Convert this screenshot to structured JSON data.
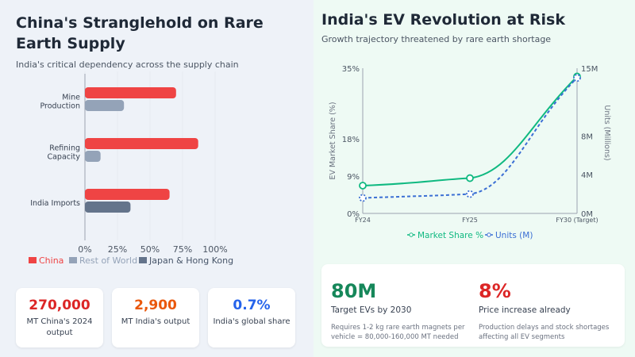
{
  "left": {
    "title": "China's Stranglehold on Rare Earth Supply",
    "subtitle": "India's critical dependency across the supply chain",
    "cards": [
      {
        "value": "270,000",
        "label": "MT China's 2024 output",
        "color": "#dc2626"
      },
      {
        "value": "2,900",
        "label": "MT India's output",
        "color": "#ea580c"
      },
      {
        "value": "0.7%",
        "label": "India's global share",
        "color": "#2563eb"
      }
    ]
  },
  "right": {
    "title": "India's EV Revolution at Risk",
    "subtitle": "Growth trajectory threatened by rare earth shortage",
    "stats": [
      {
        "value": "80M",
        "label": "Target EVs by 2030",
        "desc": "Requires 1-2 kg rare earth magnets per vehicle = 80,000-160,000 MT needed",
        "color": "#16875a"
      },
      {
        "value": "8%",
        "label": "Price increase already",
        "desc": "Production delays and stock shortages affecting all EV segments",
        "color": "#dc2626"
      }
    ]
  },
  "chart_data": [
    {
      "type": "bar",
      "orientation": "horizontal",
      "categories": [
        "Mine Production",
        "Refining Capacity",
        "India Imports"
      ],
      "series": [
        {
          "name": "China",
          "values": [
            70,
            87,
            65
          ],
          "color": "#ef4444"
        },
        {
          "name": "Rest of World",
          "values": [
            30,
            12,
            null
          ],
          "color": "#94a3b8"
        },
        {
          "name": "Japan & Hong Kong",
          "values": [
            null,
            null,
            35
          ],
          "color": "#64748b"
        }
      ],
      "xticks": [
        "0%",
        "25%",
        "50%",
        "75%",
        "100%"
      ],
      "xlim": [
        0,
        100
      ],
      "legend": "bottom-left"
    },
    {
      "type": "line",
      "categories": [
        "FY24",
        "FY25",
        "FY30 (Target)"
      ],
      "series": [
        {
          "name": "Market Share %",
          "axis": "left",
          "values": [
            6.7,
            8.5,
            33
          ],
          "color": "#10b981"
        },
        {
          "name": "Units (M)",
          "axis": "right",
          "values": [
            1.6,
            2.0,
            14
          ],
          "color": "#3b6fd4"
        }
      ],
      "ylabel": "EV Market Share (%)",
      "y2label": "Units (Millions)",
      "ylim": [
        0,
        35
      ],
      "y2lim": [
        0,
        15
      ],
      "yticks": [
        "0%",
        "9%",
        "18%",
        "35%"
      ],
      "y2ticks": [
        "0M",
        "4M",
        "8M",
        "15M"
      ],
      "legend": "bottom"
    }
  ]
}
